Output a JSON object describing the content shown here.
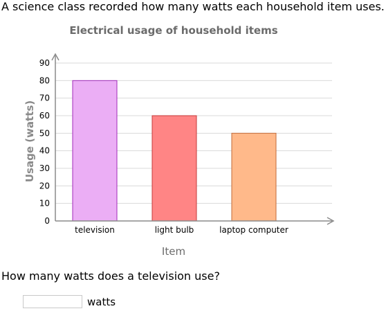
{
  "intro_text": "A science class recorded how many watts each household item uses.",
  "question": "How many watts does a television use?",
  "answer": {
    "value": "",
    "unit": "watts"
  },
  "chart_data": {
    "type": "bar",
    "title": "Electrical usage of household items",
    "xlabel": "Item",
    "ylabel": "Usage (watts)",
    "categories": [
      "television",
      "light bulb",
      "laptop computer"
    ],
    "values": [
      80,
      60,
      50
    ],
    "ylim": [
      0,
      90
    ],
    "yticks": [
      0,
      10,
      20,
      30,
      40,
      50,
      60,
      70,
      80,
      90
    ],
    "grid": true,
    "bar_colors": [
      "#ebaef5",
      "#ff8585",
      "#ffb98a"
    ],
    "bar_edge_colors": [
      "#a02ab8",
      "#c43a3a",
      "#c06a3a"
    ]
  }
}
